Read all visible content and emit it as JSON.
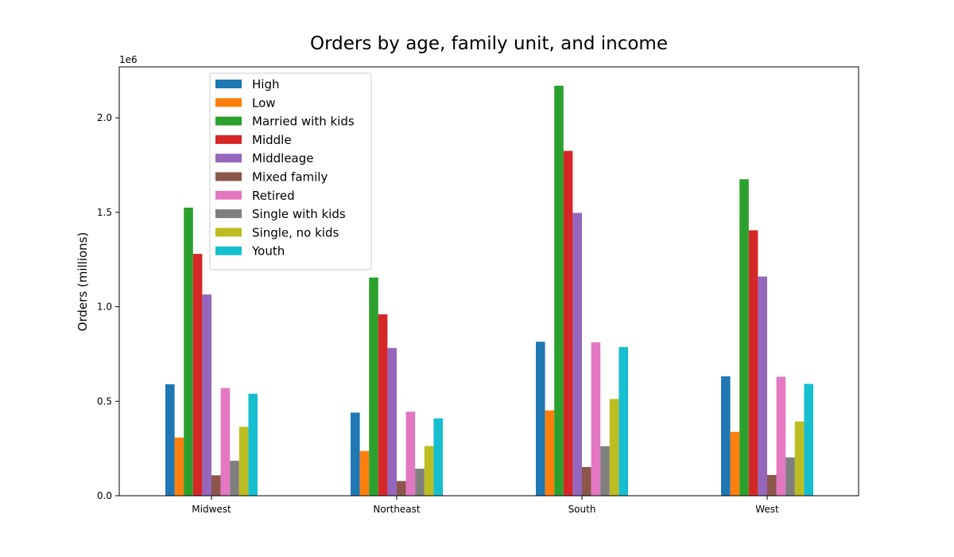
{
  "chart_data": {
    "type": "bar",
    "title": "Orders by age, family unit, and income",
    "xlabel": "",
    "ylabel": "Orders (millions)",
    "y_offset_label": "1e6",
    "ylim": [
      0,
      2270000
    ],
    "yticks": [
      0,
      500000,
      1000000,
      1500000,
      2000000
    ],
    "ytick_labels": [
      "0.0",
      "0.5",
      "1.0",
      "1.5",
      "2.0"
    ],
    "grid": false,
    "legend_position": "upper-left",
    "categories": [
      "Midwest",
      "Northeast",
      "South",
      "West"
    ],
    "series": [
      {
        "name": "High",
        "color": "#1f77b4",
        "values": [
          590000,
          440000,
          815000,
          632000
        ]
      },
      {
        "name": "Low",
        "color": "#ff7f0e",
        "values": [
          308000,
          237000,
          452000,
          338000
        ]
      },
      {
        "name": "Married with kids",
        "color": "#2ca02c",
        "values": [
          1525000,
          1155000,
          2170000,
          1675000
        ]
      },
      {
        "name": "Middle",
        "color": "#d62728",
        "values": [
          1280000,
          960000,
          1825000,
          1405000
        ]
      },
      {
        "name": "Middleage",
        "color": "#9467bd",
        "values": [
          1065000,
          782000,
          1497000,
          1160000
        ]
      },
      {
        "name": "Mixed family",
        "color": "#8c564b",
        "values": [
          108000,
          78000,
          152000,
          110000
        ]
      },
      {
        "name": "Retired",
        "color": "#e377c2",
        "values": [
          570000,
          445000,
          812000,
          630000
        ]
      },
      {
        "name": "Single with kids",
        "color": "#7f7f7f",
        "values": [
          185000,
          143000,
          262000,
          203000
        ]
      },
      {
        "name": "Single, no kids",
        "color": "#bcbd22",
        "values": [
          365000,
          263000,
          512000,
          393000
        ]
      },
      {
        "name": "Youth",
        "color": "#17becf",
        "values": [
          540000,
          410000,
          787000,
          592000
        ]
      }
    ]
  }
}
